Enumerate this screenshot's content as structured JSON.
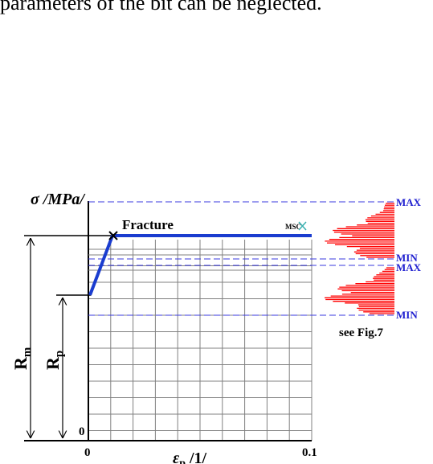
{
  "text": {
    "body_line": "parameters of the bit can be neglected."
  },
  "figure": {
    "y_axis_label": "σ /MPa/",
    "x_axis_label_eps": "ε",
    "x_axis_label_sub": "p",
    "x_axis_label_unit": " /1/",
    "x_tick_0": "0",
    "x_tick_end": "0.1",
    "y_tick_0": "0",
    "rm_label": "R",
    "rm_sub": "m",
    "rp_label": "R",
    "rp_sub": "p",
    "fracture_label": "Fracture",
    "logo_text": "MSC",
    "max_label_1": "MAX",
    "min_label_1": "MIN",
    "max_label_2": "MAX",
    "min_label_2": "MIN",
    "see_fig_label": "see Fig.7"
  },
  "colors": {
    "curve": "#1a3ccf",
    "dashed": "#3a3adf",
    "histogram": "#ff0000",
    "grid": "#808080",
    "label_blue": "#2020d0"
  },
  "chart_data": {
    "type": "line",
    "xlim": [
      0,
      0.1
    ],
    "points": [
      {
        "x": 0.0,
        "y": "Rp"
      },
      {
        "x": 0.01,
        "y": "Rm"
      },
      {
        "x": 0.1,
        "y": "Rm"
      }
    ]
  }
}
